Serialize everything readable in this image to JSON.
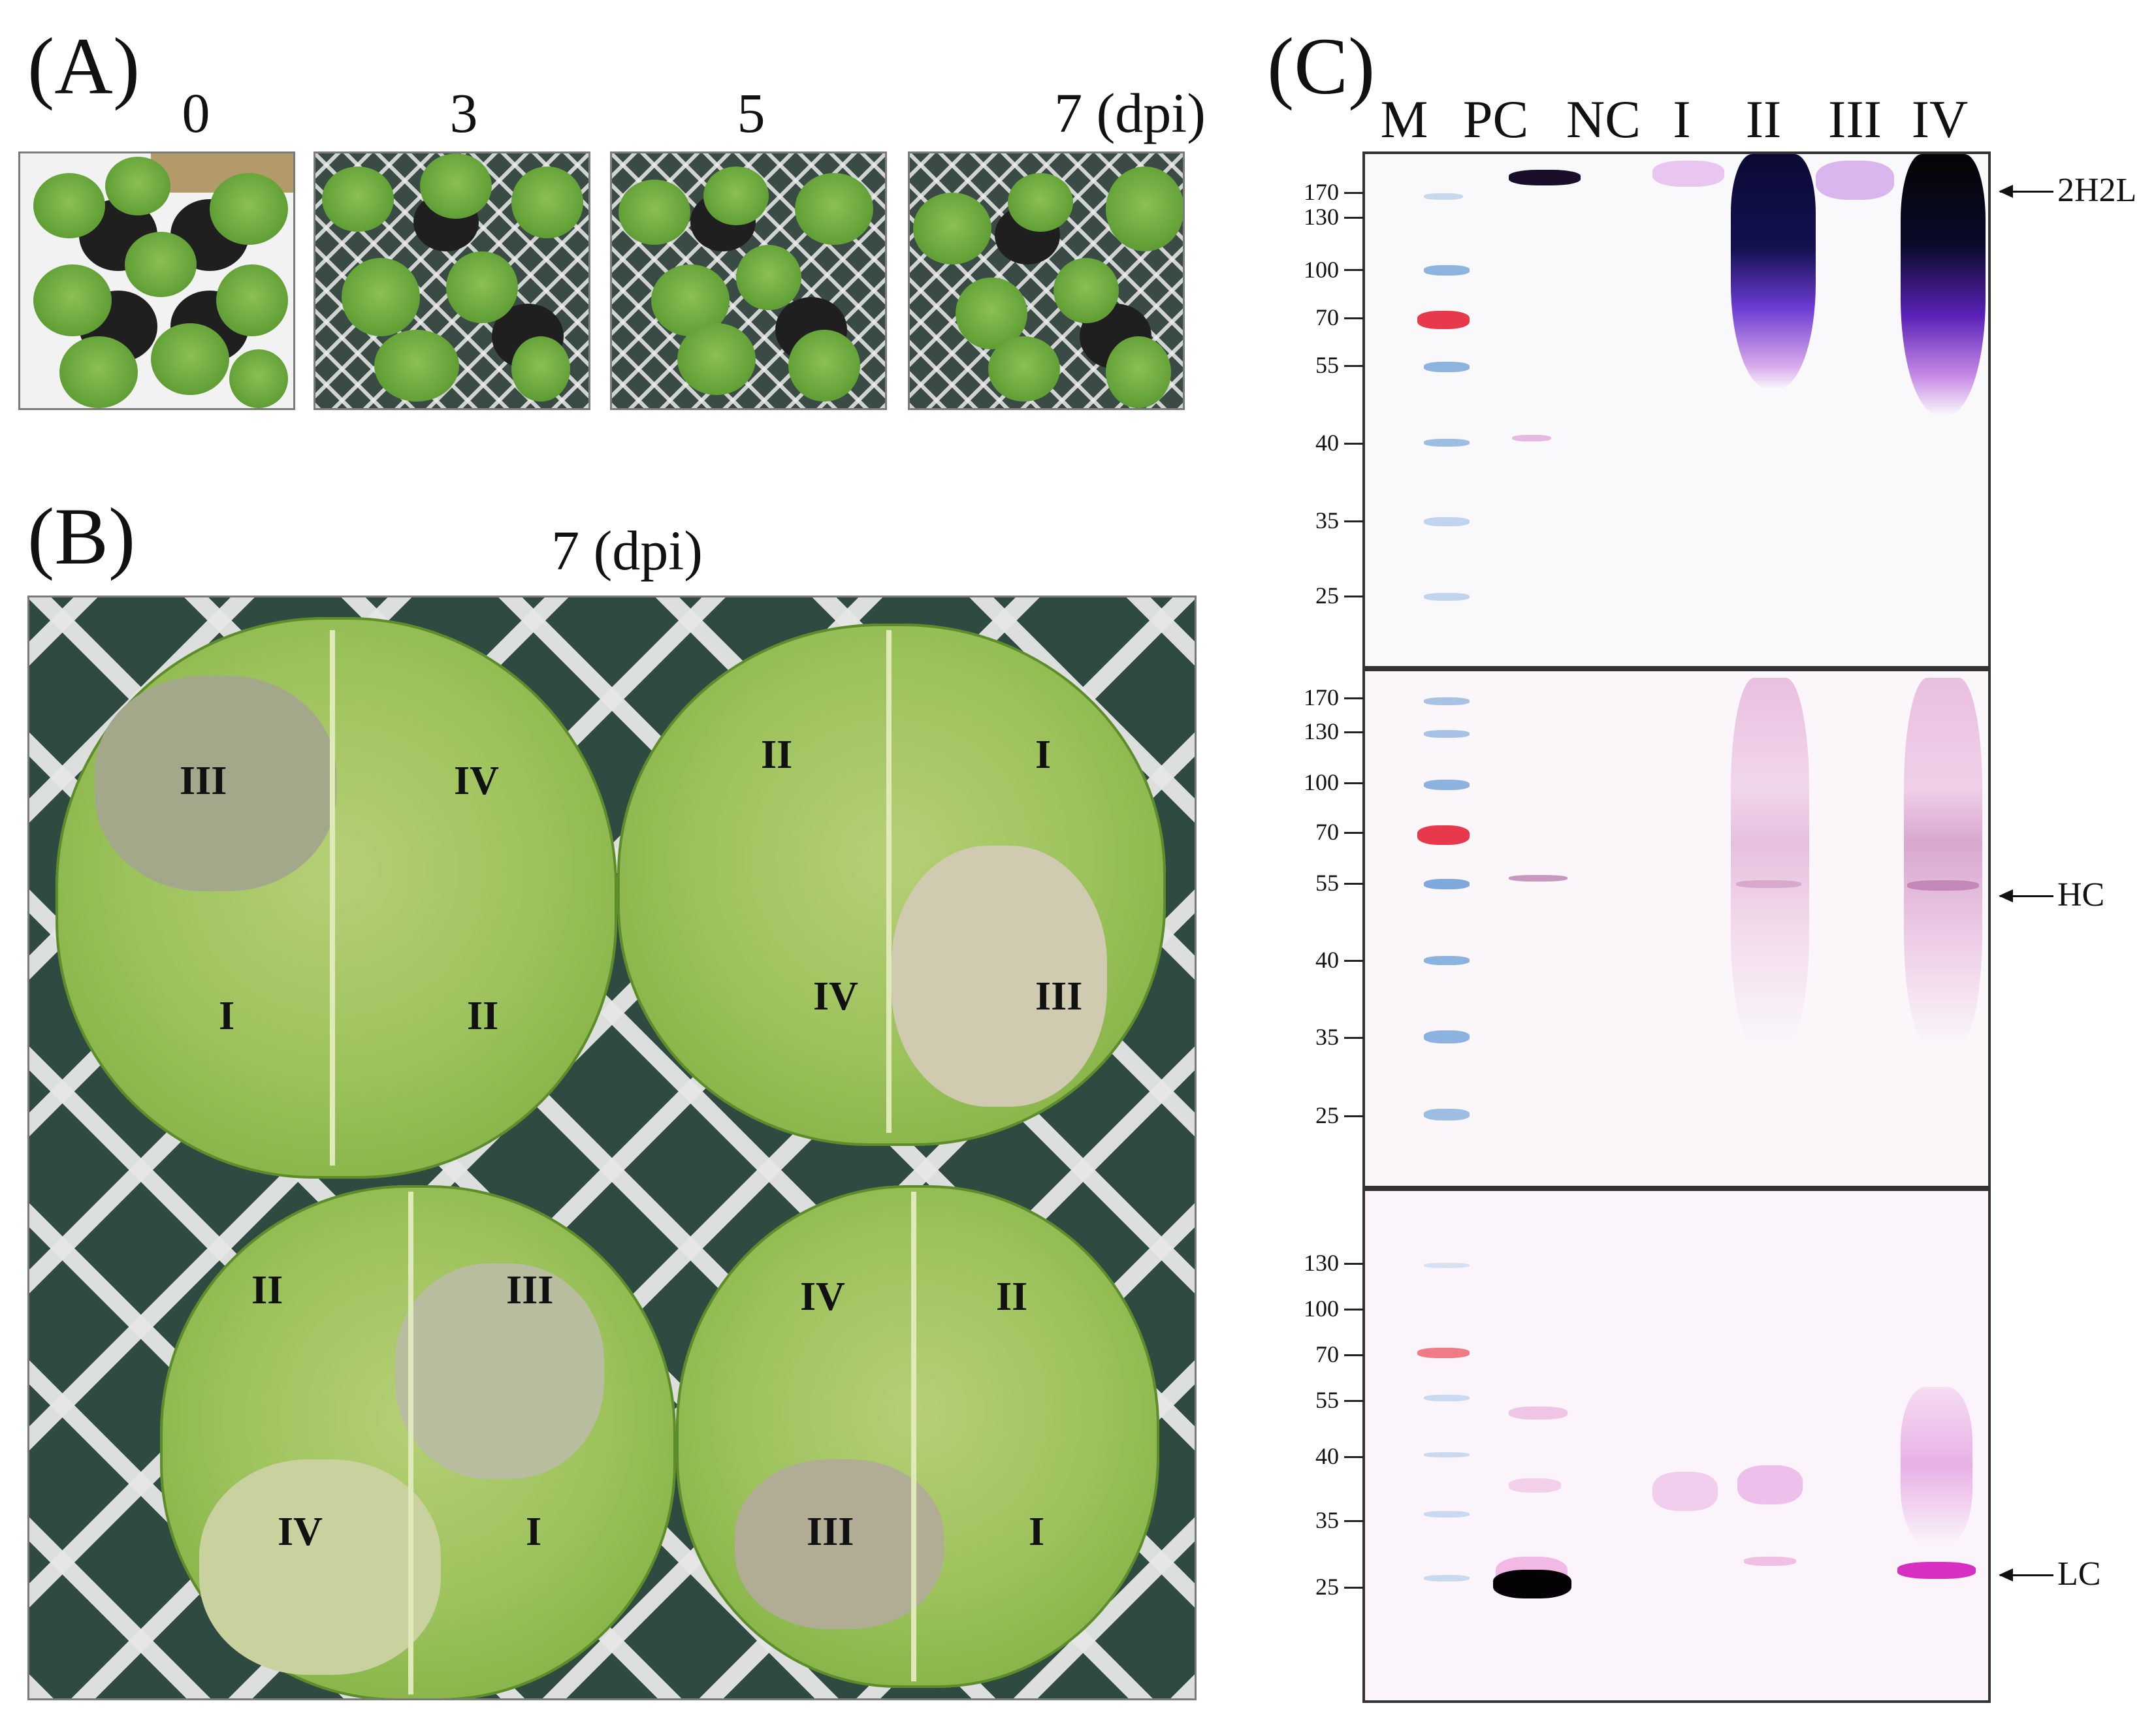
{
  "panel_a": {
    "letter": "(A)",
    "timepoints": [
      "0",
      "3",
      "5",
      "7 (dpi)"
    ]
  },
  "panel_b": {
    "letter": "(B)",
    "title": "7 (dpi)",
    "leaves": [
      {
        "labels": [
          "III",
          "IV",
          "I",
          "II"
        ]
      },
      {
        "labels": [
          "II",
          "I",
          "IV",
          "III"
        ]
      },
      {
        "labels": [
          "II",
          "III",
          "IV",
          "I"
        ]
      },
      {
        "labels": [
          "IV",
          "II",
          "III",
          "I"
        ]
      }
    ]
  },
  "panel_c": {
    "letter": "(C)",
    "lanes": [
      "M",
      "PC",
      "NC",
      "I",
      "II",
      "III",
      "IV"
    ],
    "blots": [
      {
        "markers": [
          "170",
          "130",
          "100",
          "70",
          "55",
          "40",
          "35",
          "25"
        ],
        "arrow_label": "2H2L"
      },
      {
        "markers": [
          "170",
          "130",
          "100",
          "70",
          "55",
          "40",
          "35",
          "25"
        ],
        "arrow_label": "HC"
      },
      {
        "markers": [
          "130",
          "100",
          "70",
          "55",
          "40",
          "35",
          "25"
        ],
        "arrow_label": "LC"
      }
    ]
  }
}
